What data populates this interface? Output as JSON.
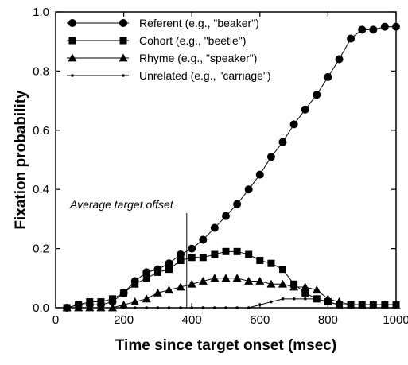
{
  "chart_data": {
    "type": "line",
    "xlabel": "Time since target onset (msec)",
    "ylabel": "Fixation probability",
    "xlim": [
      0,
      1000
    ],
    "ylim": [
      0,
      1.0
    ],
    "x_ticks": [
      0,
      200,
      400,
      600,
      800,
      1000
    ],
    "y_ticks": [
      0.0,
      0.2,
      0.4,
      0.6,
      0.8,
      1.0
    ],
    "x_tick_labels": [
      "0",
      "200",
      "400",
      "600",
      "800",
      "1000"
    ],
    "y_tick_labels": [
      "0.0",
      "0.2",
      "0.4",
      "0.6",
      "0.8",
      "1.0"
    ],
    "grid": false,
    "legend_position": "top-left",
    "annotation": {
      "text": "Average target offset",
      "x": 385
    },
    "x": [
      33,
      67,
      100,
      133,
      167,
      200,
      233,
      267,
      300,
      333,
      367,
      400,
      433,
      467,
      500,
      533,
      567,
      600,
      633,
      667,
      700,
      733,
      767,
      800,
      833,
      867,
      900,
      933,
      967,
      1000
    ],
    "series": [
      {
        "name": "Referent (e.g., \"beaker\")",
        "marker": "circle",
        "values": [
          0.0,
          0.01,
          0.01,
          0.01,
          0.02,
          0.05,
          0.09,
          0.12,
          0.13,
          0.15,
          0.18,
          0.2,
          0.23,
          0.27,
          0.31,
          0.35,
          0.4,
          0.45,
          0.51,
          0.56,
          0.62,
          0.67,
          0.72,
          0.78,
          0.84,
          0.91,
          0.94,
          0.94,
          0.95,
          0.95
        ]
      },
      {
        "name": "Cohort (e.g., \"beetle\")",
        "marker": "square",
        "values": [
          0.0,
          0.01,
          0.02,
          0.02,
          0.03,
          0.05,
          0.08,
          0.1,
          0.12,
          0.13,
          0.16,
          0.17,
          0.17,
          0.18,
          0.19,
          0.19,
          0.18,
          0.16,
          0.15,
          0.13,
          0.08,
          0.05,
          0.03,
          0.02,
          0.01,
          0.01,
          0.01,
          0.01,
          0.01,
          0.01
        ]
      },
      {
        "name": "Rhyme (e.g., \"speaker\")",
        "marker": "triangle",
        "values": [
          0.0,
          0.0,
          0.0,
          0.0,
          0.0,
          0.01,
          0.02,
          0.03,
          0.05,
          0.06,
          0.07,
          0.08,
          0.09,
          0.1,
          0.1,
          0.1,
          0.09,
          0.09,
          0.08,
          0.08,
          0.07,
          0.07,
          0.06,
          0.03,
          0.02,
          0.01,
          0.01,
          0.01,
          0.01,
          0.01
        ]
      },
      {
        "name": "Unrelated (e.g., \"carriage\")",
        "marker": "dot",
        "values": [
          0.0,
          0.0,
          0.0,
          0.0,
          0.0,
          0.0,
          0.0,
          0.0,
          0.0,
          0.0,
          0.0,
          0.0,
          0.0,
          0.0,
          0.0,
          0.0,
          0.0,
          0.01,
          0.02,
          0.03,
          0.03,
          0.03,
          0.03,
          0.02,
          0.01,
          0.01,
          0.01,
          0.01,
          0.01,
          0.01
        ]
      }
    ]
  }
}
